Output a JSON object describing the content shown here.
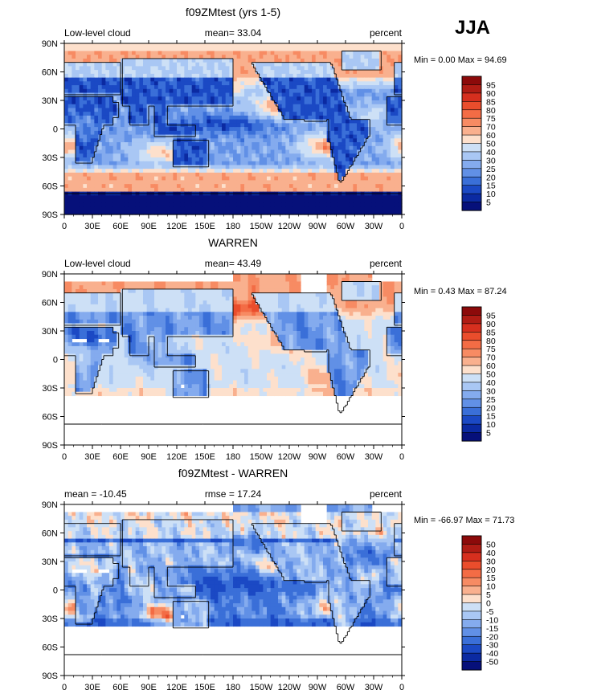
{
  "season_label": "JJA",
  "chart_data": [
    {
      "type": "heatmap",
      "title": "f09ZMtest (yrs 1-5)",
      "left_label": "Low-level cloud",
      "center_label": "mean=  33.04",
      "right_label": "percent",
      "minmax_label": "Min =   0.00 Max =  94.69",
      "stats": {
        "mean": 33.04,
        "min": 0.0,
        "max": 94.69,
        "units": "percent"
      },
      "variable": "Low-level cloud",
      "xlim": [
        0,
        360
      ],
      "ylim": [
        -90,
        90
      ],
      "x_ticks": [
        "0",
        "30E",
        "60E",
        "90E",
        "120E",
        "150E",
        "180",
        "150W",
        "120W",
        "90W",
        "60W",
        "30W",
        "0"
      ],
      "y_ticks": [
        "90N",
        "60N",
        "30N",
        "0",
        "30S",
        "60S",
        "90S"
      ],
      "colorbar_levels": [
        "95",
        "90",
        "85",
        "80",
        "75",
        "70",
        "60",
        "50",
        "40",
        "30",
        "25",
        "20",
        "15",
        "10",
        "5"
      ],
      "colorbar_colors": [
        "#8c0a0a",
        "#b01c14",
        "#d62f1e",
        "#ea4d2c",
        "#f36c45",
        "#f78b63",
        "#f9b08e",
        "#fde0cc",
        "#cde0f6",
        "#a9c7f4",
        "#84abee",
        "#6190e6",
        "#3a6fd8",
        "#1b49c4",
        "#0b2aa2",
        "#06107a"
      ],
      "field": "model_low_cloud"
    },
    {
      "type": "heatmap",
      "title": "WARREN",
      "left_label": "Low-level cloud",
      "center_label": "mean=  43.49",
      "right_label": "percent",
      "minmax_label": "Min =   0.43 Max =  87.24",
      "stats": {
        "mean": 43.49,
        "min": 0.43,
        "max": 87.24,
        "units": "percent"
      },
      "variable": "Low-level cloud",
      "xlim": [
        0,
        360
      ],
      "ylim": [
        -90,
        90
      ],
      "x_ticks": [
        "0",
        "30E",
        "60E",
        "90E",
        "120E",
        "150E",
        "180",
        "150W",
        "120W",
        "90W",
        "60W",
        "30W",
        "0"
      ],
      "y_ticks": [
        "90N",
        "60N",
        "30N",
        "0",
        "30S",
        "60S",
        "90S"
      ],
      "colorbar_levels": [
        "95",
        "90",
        "85",
        "80",
        "75",
        "70",
        "60",
        "50",
        "40",
        "30",
        "25",
        "20",
        "15",
        "10",
        "5"
      ],
      "colorbar_colors": [
        "#8c0a0a",
        "#b01c14",
        "#d62f1e",
        "#ea4d2c",
        "#f36c45",
        "#f78b63",
        "#f9b08e",
        "#fde0cc",
        "#cde0f6",
        "#a9c7f4",
        "#84abee",
        "#6190e6",
        "#3a6fd8",
        "#1b49c4",
        "#0b2aa2",
        "#06107a"
      ],
      "field": "obs_low_cloud"
    },
    {
      "type": "heatmap",
      "title": "f09ZMtest - WARREN",
      "left_label": "mean = -10.45",
      "center_label": "rmse =  17.24",
      "right_label": "percent",
      "minmax_label": "Min = -66.97 Max =  71.73",
      "stats": {
        "mean": -10.45,
        "rmse": 17.24,
        "min": -66.97,
        "max": 71.73,
        "units": "percent"
      },
      "variable": "difference",
      "xlim": [
        0,
        360
      ],
      "ylim": [
        -90,
        90
      ],
      "x_ticks": [
        "0",
        "30E",
        "60E",
        "90E",
        "120E",
        "150E",
        "180",
        "150W",
        "120W",
        "90W",
        "60W",
        "30W",
        "0"
      ],
      "y_ticks": [
        "90N",
        "60N",
        "30N",
        "0",
        "30S",
        "60S",
        "90S"
      ],
      "colorbar_levels": [
        "50",
        "40",
        "30",
        "20",
        "15",
        "10",
        "5",
        "0",
        "-5",
        "-10",
        "-15",
        "-20",
        "-30",
        "-40",
        "-50"
      ],
      "colorbar_colors": [
        "#8c0a0a",
        "#b01c14",
        "#d62f1e",
        "#ea4d2c",
        "#f36c45",
        "#f78b63",
        "#f9b08e",
        "#fde0cc",
        "#cde0f6",
        "#a9c7f4",
        "#84abee",
        "#6190e6",
        "#3a6fd8",
        "#1b49c4",
        "#0b2aa2",
        "#06107a"
      ],
      "field": "difference"
    }
  ]
}
